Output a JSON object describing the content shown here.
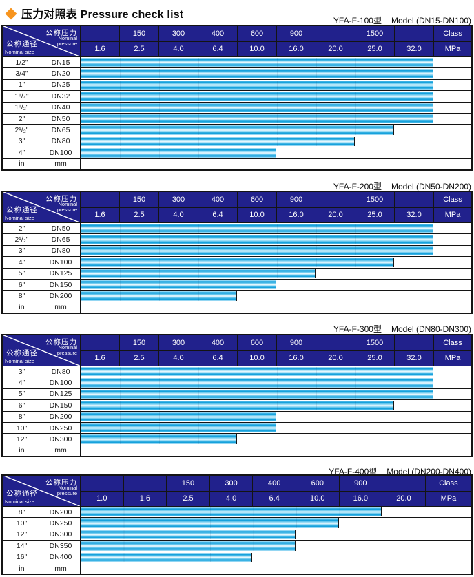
{
  "page_title": {
    "chinese": "压力对照表",
    "english": "Pressure check list"
  },
  "colors": {
    "header_navy": "#21218c",
    "bar_blue": "#0e9eda",
    "bar_light": "#f4fcff",
    "diamond_orange": "#f7941d",
    "border_black": "#141414"
  },
  "header_labels": {
    "pressure_cn": "公称压力",
    "pressure_en_line1": "Nominal",
    "pressure_en_line2": "pressure",
    "size_cn": "公称通径",
    "size_en": "Nominal size",
    "class_label": "Class",
    "mpa_label": "MPa"
  },
  "tables": [
    {
      "title_model": "YFA-F-100型",
      "title_range": "Model (DN15-DN100)",
      "top_title": 21,
      "top_table": 36,
      "class_row": [
        "",
        "150",
        "300",
        "400",
        "600",
        "900",
        "",
        "1500",
        ""
      ],
      "mpa_row": [
        "1.6",
        "2.5",
        "4.0",
        "6.4",
        "10.0",
        "16.0",
        "20.0",
        "25.0",
        "32.0"
      ],
      "rows": [
        {
          "size": "1/2\"",
          "dn": "DN15",
          "span": 9,
          "max_mpa": "32.0"
        },
        {
          "size": "3/4\"",
          "dn": "DN20",
          "span": 9,
          "max_mpa": "32.0"
        },
        {
          "size": "1\"",
          "dn": "DN25",
          "span": 9,
          "max_mpa": "32.0"
        },
        {
          "size": "1¹/₄\"",
          "dn": "DN32",
          "span": 9,
          "max_mpa": "32.0"
        },
        {
          "size": "1¹/₂\"",
          "dn": "DN40",
          "span": 9,
          "max_mpa": "32.0"
        },
        {
          "size": "2\"",
          "dn": "DN50",
          "span": 9,
          "max_mpa": "32.0"
        },
        {
          "size": "2¹/₂\"",
          "dn": "DN65",
          "span": 8,
          "max_mpa": "25.0"
        },
        {
          "size": "3\"",
          "dn": "DN80",
          "span": 7,
          "max_mpa": "20.0"
        },
        {
          "size": "4\"",
          "dn": "DN100",
          "span": 5,
          "max_mpa": "10.0"
        },
        {
          "size": "in",
          "dn": "mm",
          "span": 0,
          "max_mpa": null
        }
      ]
    },
    {
      "title_model": "YFA-F-200型",
      "title_range": "Model (DN50-DN200)",
      "top_title": 262,
      "top_table": 277,
      "class_row": [
        "",
        "150",
        "300",
        "400",
        "600",
        "900",
        "",
        "1500",
        ""
      ],
      "mpa_row": [
        "1.6",
        "2.5",
        "4.0",
        "6.4",
        "10.0",
        "16.0",
        "20.0",
        "25.0",
        "32.0"
      ],
      "rows": [
        {
          "size": "2\"",
          "dn": "DN50",
          "span": 9,
          "max_mpa": "32.0"
        },
        {
          "size": "2¹/₂\"",
          "dn": "DN65",
          "span": 9,
          "max_mpa": "32.0"
        },
        {
          "size": "3\"",
          "dn": "DN80",
          "span": 9,
          "max_mpa": "32.0"
        },
        {
          "size": "4\"",
          "dn": "DN100",
          "span": 8,
          "max_mpa": "25.0"
        },
        {
          "size": "5\"",
          "dn": "DN125",
          "span": 6,
          "max_mpa": "16.0"
        },
        {
          "size": "6\"",
          "dn": "DN150",
          "span": 5,
          "max_mpa": "10.0"
        },
        {
          "size": "8\"",
          "dn": "DN200",
          "span": 4,
          "max_mpa": "6.4"
        },
        {
          "size": "in",
          "dn": "mm",
          "span": 0,
          "max_mpa": null
        }
      ]
    },
    {
      "title_model": "YFA-F-300型",
      "title_range": "Model (DN80-DN300)",
      "top_title": 469,
      "top_table": 485,
      "class_row": [
        "",
        "150",
        "300",
        "400",
        "600",
        "900",
        "",
        "1500",
        ""
      ],
      "mpa_row": [
        "1.6",
        "2.5",
        "4.0",
        "6.4",
        "10.0",
        "16.0",
        "20.0",
        "25.0",
        "32.0"
      ],
      "rows": [
        {
          "size": "3\"",
          "dn": "DN80",
          "span": 9,
          "max_mpa": "32.0"
        },
        {
          "size": "4\"",
          "dn": "DN100",
          "span": 9,
          "max_mpa": "32.0"
        },
        {
          "size": "5\"",
          "dn": "DN125",
          "span": 9,
          "max_mpa": "32.0"
        },
        {
          "size": "6\"",
          "dn": "DN150",
          "span": 8,
          "max_mpa": "25.0"
        },
        {
          "size": "8\"",
          "dn": "DN200",
          "span": 5,
          "max_mpa": "10.0"
        },
        {
          "size": "10\"",
          "dn": "DN250",
          "span": 5,
          "max_mpa": "10.0"
        },
        {
          "size": "12\"",
          "dn": "DN300",
          "span": 4,
          "max_mpa": "6.4"
        },
        {
          "size": "in",
          "dn": "mm",
          "span": 0,
          "max_mpa": null
        }
      ]
    },
    {
      "title_model": "YFA-F-400型",
      "title_range": "Model (DN200-DN400)",
      "top_title": 676,
      "top_table": 689,
      "class_row": [
        "",
        "",
        "150",
        "300",
        "400",
        "600",
        "900",
        ""
      ],
      "mpa_row": [
        "1.0",
        "1.6",
        "2.5",
        "4.0",
        "6.4",
        "10.0",
        "16.0",
        "20.0"
      ],
      "rows": [
        {
          "size": "8\"",
          "dn": "DN200",
          "span": 7,
          "max_mpa": "16.0"
        },
        {
          "size": "10\"",
          "dn": "DN250",
          "span": 6,
          "max_mpa": "10.0"
        },
        {
          "size": "12\"",
          "dn": "DN300",
          "span": 5,
          "max_mpa": "6.4"
        },
        {
          "size": "14\"",
          "dn": "DN350",
          "span": 5,
          "max_mpa": "6.4"
        },
        {
          "size": "16\"",
          "dn": "DN400",
          "span": 4,
          "max_mpa": "4.0"
        },
        {
          "size": "in",
          "dn": "mm",
          "span": 0,
          "max_mpa": null
        }
      ]
    }
  ]
}
